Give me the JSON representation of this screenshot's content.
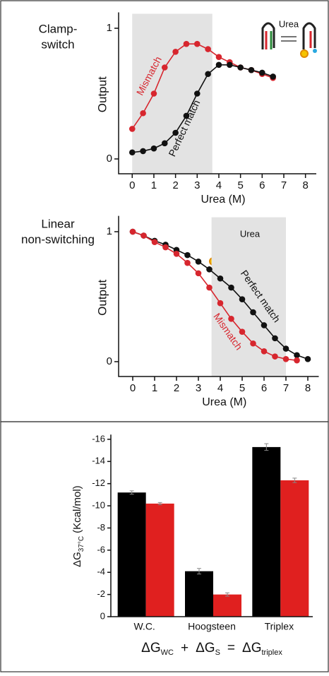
{
  "chart_data": [
    {
      "type": "line",
      "title": [
        "Clamp-",
        "switch"
      ],
      "ylabel": "Output",
      "xlabel": "Urea (M)",
      "inset_label": "Urea",
      "xlim": [
        -0.4,
        8.5
      ],
      "ylim": [
        -0.1,
        1.1
      ],
      "xticks": [
        0,
        1,
        2,
        3,
        4,
        5,
        6,
        7,
        8
      ],
      "yticks": [
        0,
        1
      ],
      "shaded_region": [
        0,
        3.7
      ],
      "series": [
        {
          "name": "Mismatch",
          "color": "#d7262e",
          "x": [
            0,
            0.5,
            1,
            1.5,
            2,
            2.5,
            3,
            3.5,
            4,
            4.5,
            5,
            5.5,
            6,
            6.5
          ],
          "values": [
            0.23,
            0.35,
            0.5,
            0.7,
            0.82,
            0.88,
            0.88,
            0.84,
            0.78,
            0.74,
            0.7,
            0.68,
            0.65,
            0.62
          ]
        },
        {
          "name": "Perfect match",
          "color": "#111111",
          "x": [
            0,
            0.5,
            1,
            1.5,
            2,
            2.5,
            3,
            3.5,
            4,
            4.5,
            5,
            5.5,
            6,
            6.5
          ],
          "values": [
            0.05,
            0.06,
            0.08,
            0.12,
            0.2,
            0.33,
            0.5,
            0.65,
            0.72,
            0.72,
            0.7,
            0.68,
            0.66,
            0.63
          ]
        }
      ]
    },
    {
      "type": "line",
      "title": [
        "Linear",
        "non-switching"
      ],
      "ylabel": "Output",
      "xlabel": "Urea (M)",
      "inset_label": "Urea",
      "xlim": [
        -0.4,
        8.5
      ],
      "ylim": [
        -0.1,
        1.1
      ],
      "xticks": [
        0,
        1,
        2,
        3,
        4,
        5,
        6,
        7,
        8
      ],
      "yticks": [
        0,
        1
      ],
      "shaded_region": [
        3.6,
        7
      ],
      "series": [
        {
          "name": "Perfect match",
          "color": "#111111",
          "x": [
            0,
            0.5,
            1,
            1.5,
            2,
            2.5,
            3,
            3.5,
            4,
            4.5,
            5,
            5.5,
            6,
            6.5,
            7,
            7.5,
            8
          ],
          "values": [
            1.0,
            0.97,
            0.93,
            0.9,
            0.86,
            0.82,
            0.77,
            0.71,
            0.64,
            0.57,
            0.48,
            0.38,
            0.28,
            0.18,
            0.1,
            0.05,
            0.02
          ]
        },
        {
          "name": "Mismatch",
          "color": "#d7262e",
          "x": [
            0,
            0.5,
            1,
            1.5,
            2,
            2.5,
            3,
            3.5,
            4,
            4.5,
            5,
            5.5,
            6,
            6.5,
            7,
            7.5
          ],
          "values": [
            1.0,
            0.97,
            0.92,
            0.88,
            0.83,
            0.76,
            0.68,
            0.57,
            0.45,
            0.33,
            0.23,
            0.14,
            0.08,
            0.04,
            0.02,
            0.01
          ]
        }
      ]
    },
    {
      "type": "bar",
      "ylabel": {
        "symbol": "ΔG",
        "sub": "37°C",
        "unit": "(Kcal/mol)"
      },
      "categories": [
        "W.C.",
        "Hoogsteen",
        "Triplex"
      ],
      "ylim": [
        0,
        -16.3
      ],
      "yticks": [
        -16,
        -14,
        -12,
        -10,
        -8,
        -6,
        -4,
        -2,
        0
      ],
      "series": [
        {
          "color": "#000000",
          "values": [
            -11.2,
            -4.1,
            -15.3
          ],
          "errors": [
            0.15,
            0.25,
            0.3
          ]
        },
        {
          "color": "#e0201f",
          "values": [
            -10.2,
            -2.0,
            -12.3
          ],
          "errors": [
            0.1,
            0.15,
            0.2
          ]
        }
      ],
      "equation": {
        "terms": [
          {
            "symbol": "ΔG",
            "sub": "WC"
          },
          {
            "symbol": "ΔG",
            "sub": "S"
          },
          {
            "symbol": "ΔG",
            "sub": "triplex"
          }
        ],
        "operators": [
          "+",
          "="
        ]
      }
    }
  ]
}
